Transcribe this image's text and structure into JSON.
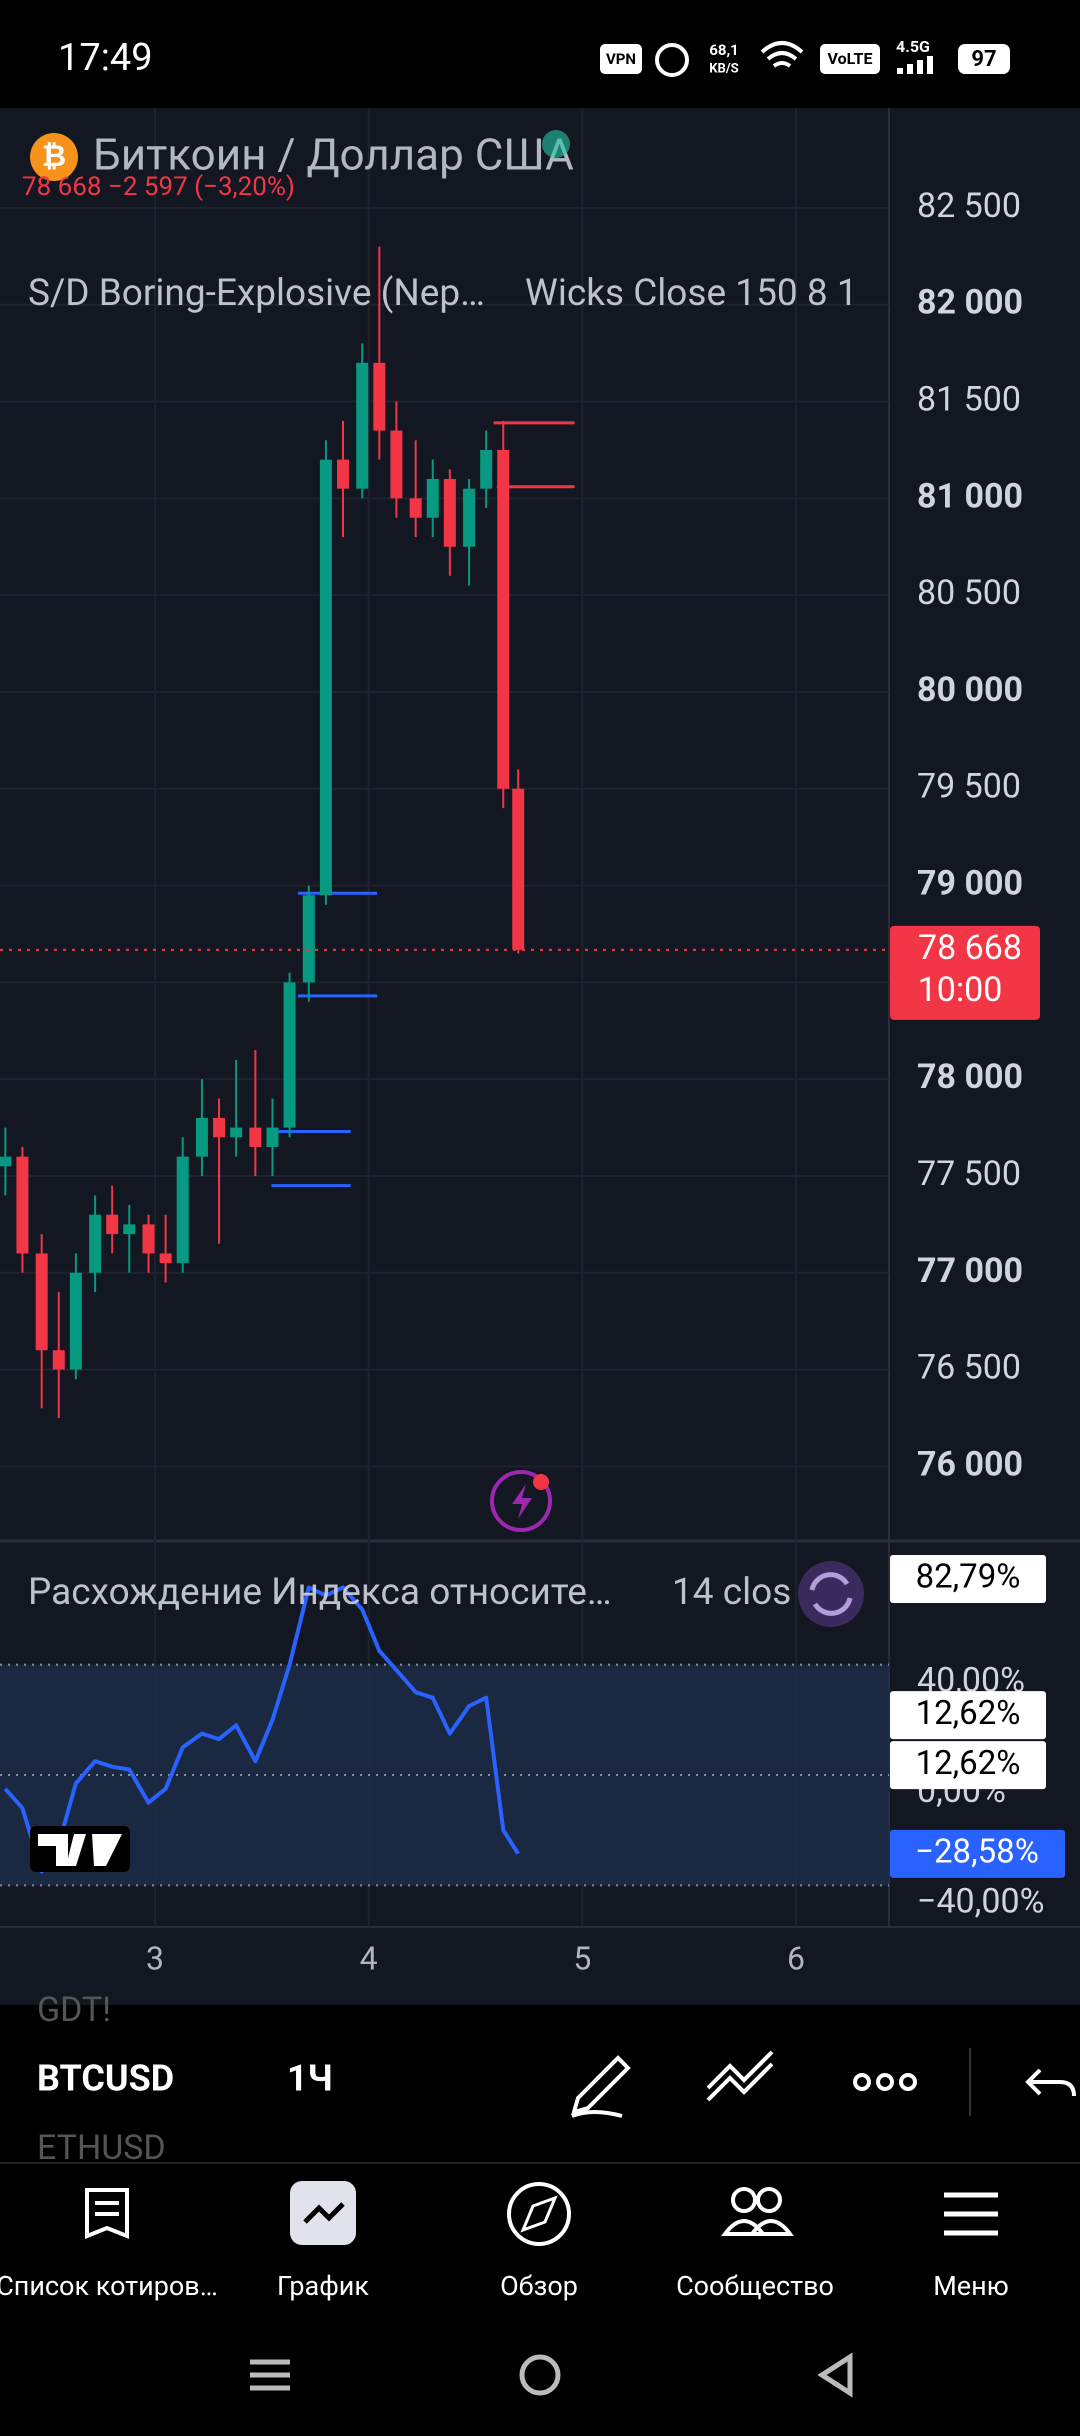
{
  "status_bar": {
    "time": "17:49",
    "vpn": "VPN",
    "speed": [
      "68,1",
      "KB/S"
    ],
    "volte": "VoLTE",
    "network": "4.5G",
    "battery": "97"
  },
  "header": {
    "symbol": "Биткоин / Доллар США",
    "quote": "78 668  −2 597 (−3,20%)",
    "indicator": "S/D Boring-Explosive (Nep…",
    "indicator_params": "Wicks Close 150 8 1"
  },
  "price_chart": {
    "type": "candlestick",
    "x": [
      2.3,
      2.38,
      2.47,
      2.55,
      2.63,
      2.72,
      2.8,
      2.88,
      2.97,
      3.05,
      3.13,
      3.22,
      3.3,
      3.38,
      3.47,
      3.55,
      3.63,
      3.72,
      3.8,
      3.88,
      3.97,
      4.05,
      4.13,
      4.22,
      4.3,
      4.38,
      4.47,
      4.55,
      4.63,
      4.7
    ],
    "open": [
      77550,
      77600,
      77100,
      76600,
      76500,
      77000,
      77300,
      77200,
      77250,
      77100,
      77050,
      77600,
      77800,
      77700,
      77750,
      77650,
      77750,
      78500,
      78950,
      81200,
      81050,
      81700,
      81350,
      81000,
      80900,
      81100,
      80750,
      81050,
      81250,
      79500
    ],
    "high": [
      77750,
      77650,
      77200,
      76900,
      77100,
      77400,
      77450,
      77350,
      77300,
      77300,
      77700,
      78000,
      77900,
      78100,
      78150,
      77900,
      78550,
      79000,
      81300,
      81400,
      81800,
      82300,
      81500,
      81300,
      81200,
      81150,
      81100,
      81350,
      81400,
      79600
    ],
    "low": [
      77400,
      77000,
      76300,
      76250,
      76450,
      76900,
      77100,
      77000,
      77000,
      76950,
      77000,
      77500,
      77150,
      77600,
      77500,
      77500,
      77700,
      78400,
      78900,
      80800,
      81000,
      81200,
      80900,
      80800,
      80800,
      80600,
      80550,
      80950,
      79400,
      78650
    ],
    "close": [
      77600,
      77100,
      76600,
      76500,
      77000,
      77300,
      77200,
      77250,
      77100,
      77050,
      77600,
      77800,
      77700,
      77750,
      77650,
      77750,
      78500,
      78950,
      81200,
      81050,
      81700,
      81350,
      81000,
      80900,
      81100,
      80750,
      81050,
      81250,
      79500,
      78668
    ],
    "xlim": [
      2.275,
      6.435
    ],
    "xticks": [
      3,
      4,
      5,
      6
    ],
    "ylim": [
      75625,
      83011
    ],
    "yticks": [
      {
        "value": 76000,
        "label": "76 000"
      },
      {
        "value": 76500,
        "label": "76 500"
      },
      {
        "value": 77000,
        "label": "77 000"
      },
      {
        "value": 77500,
        "label": "77 500"
      },
      {
        "value": 78000,
        "label": "78 000"
      },
      {
        "value": 78500,
        "label": "78 500"
      },
      {
        "value": 79000,
        "label": "79 000"
      },
      {
        "value": 79500,
        "label": "79 500"
      },
      {
        "value": 80000,
        "label": "80 000"
      },
      {
        "value": 80500,
        "label": "80 500"
      },
      {
        "value": 81000,
        "label": "81 000"
      },
      {
        "value": 81500,
        "label": "81 500"
      },
      {
        "value": 82000,
        "label": "82 000"
      },
      {
        "value": 82500,
        "label": "82 500"
      }
    ],
    "up_color": "#089981",
    "down_color": "#f23645",
    "zones": [
      {
        "value": 81390,
        "x0": 4.585,
        "x1": 4.964,
        "color": "#f23645"
      },
      {
        "value": 81060,
        "x0": 4.6,
        "x1": 4.964,
        "color": "#f23645"
      },
      {
        "value": 78960,
        "x0": 3.669,
        "x1": 4.04,
        "color": "#2962ff"
      },
      {
        "value": 78430,
        "x0": 3.669,
        "x1": 4.04,
        "color": "#2962ff"
      },
      {
        "value": 77730,
        "x0": 3.545,
        "x1": 3.916,
        "color": "#2962ff"
      },
      {
        "value": 77450,
        "x0": 3.545,
        "x1": 3.916,
        "color": "#2962ff"
      }
    ],
    "last": {
      "value": 78668,
      "label": "78 668"
    },
    "countdown": "10:00"
  },
  "indicator": {
    "type": "line",
    "title": "Расхождение Индекса относите…",
    "params": "14 clos",
    "values": [
      -5,
      -12,
      -35,
      -25,
      -3,
      5,
      3,
      2,
      -10,
      -5,
      10,
      15,
      13,
      18,
      5,
      20,
      40,
      68,
      65,
      68,
      60,
      45,
      38,
      30,
      28,
      15,
      25,
      28,
      -20,
      -28.58
    ],
    "color": "#2962ff",
    "ylim": [
      -55.1,
      84.8
    ],
    "yticks": [
      {
        "value": 40,
        "label": "40,00%"
      },
      {
        "value": 0,
        "label": "0,00%"
      },
      {
        "value": -40,
        "label": "−40,00%"
      }
    ],
    "badges": [
      {
        "value": 82.79,
        "label": "82,79%",
        "color": "#ffffff"
      },
      {
        "value": 12.62,
        "label": "12,62%",
        "color": "#ffffff"
      },
      {
        "value": 12.62,
        "label": "12,62%",
        "color": "#ffffff"
      },
      {
        "value": -28.58,
        "label": "−28,58%",
        "color": "#2962ff"
      }
    ]
  },
  "toolbar": {
    "ghost_top": "GDT!",
    "symbol": "BTCUSD",
    "interval": "1Ч",
    "ghost_bottom": "ETHUSD"
  },
  "nav": {
    "items": [
      "Список котиров…",
      "График",
      "Обзор",
      "Сообщество",
      "Меню"
    ]
  }
}
